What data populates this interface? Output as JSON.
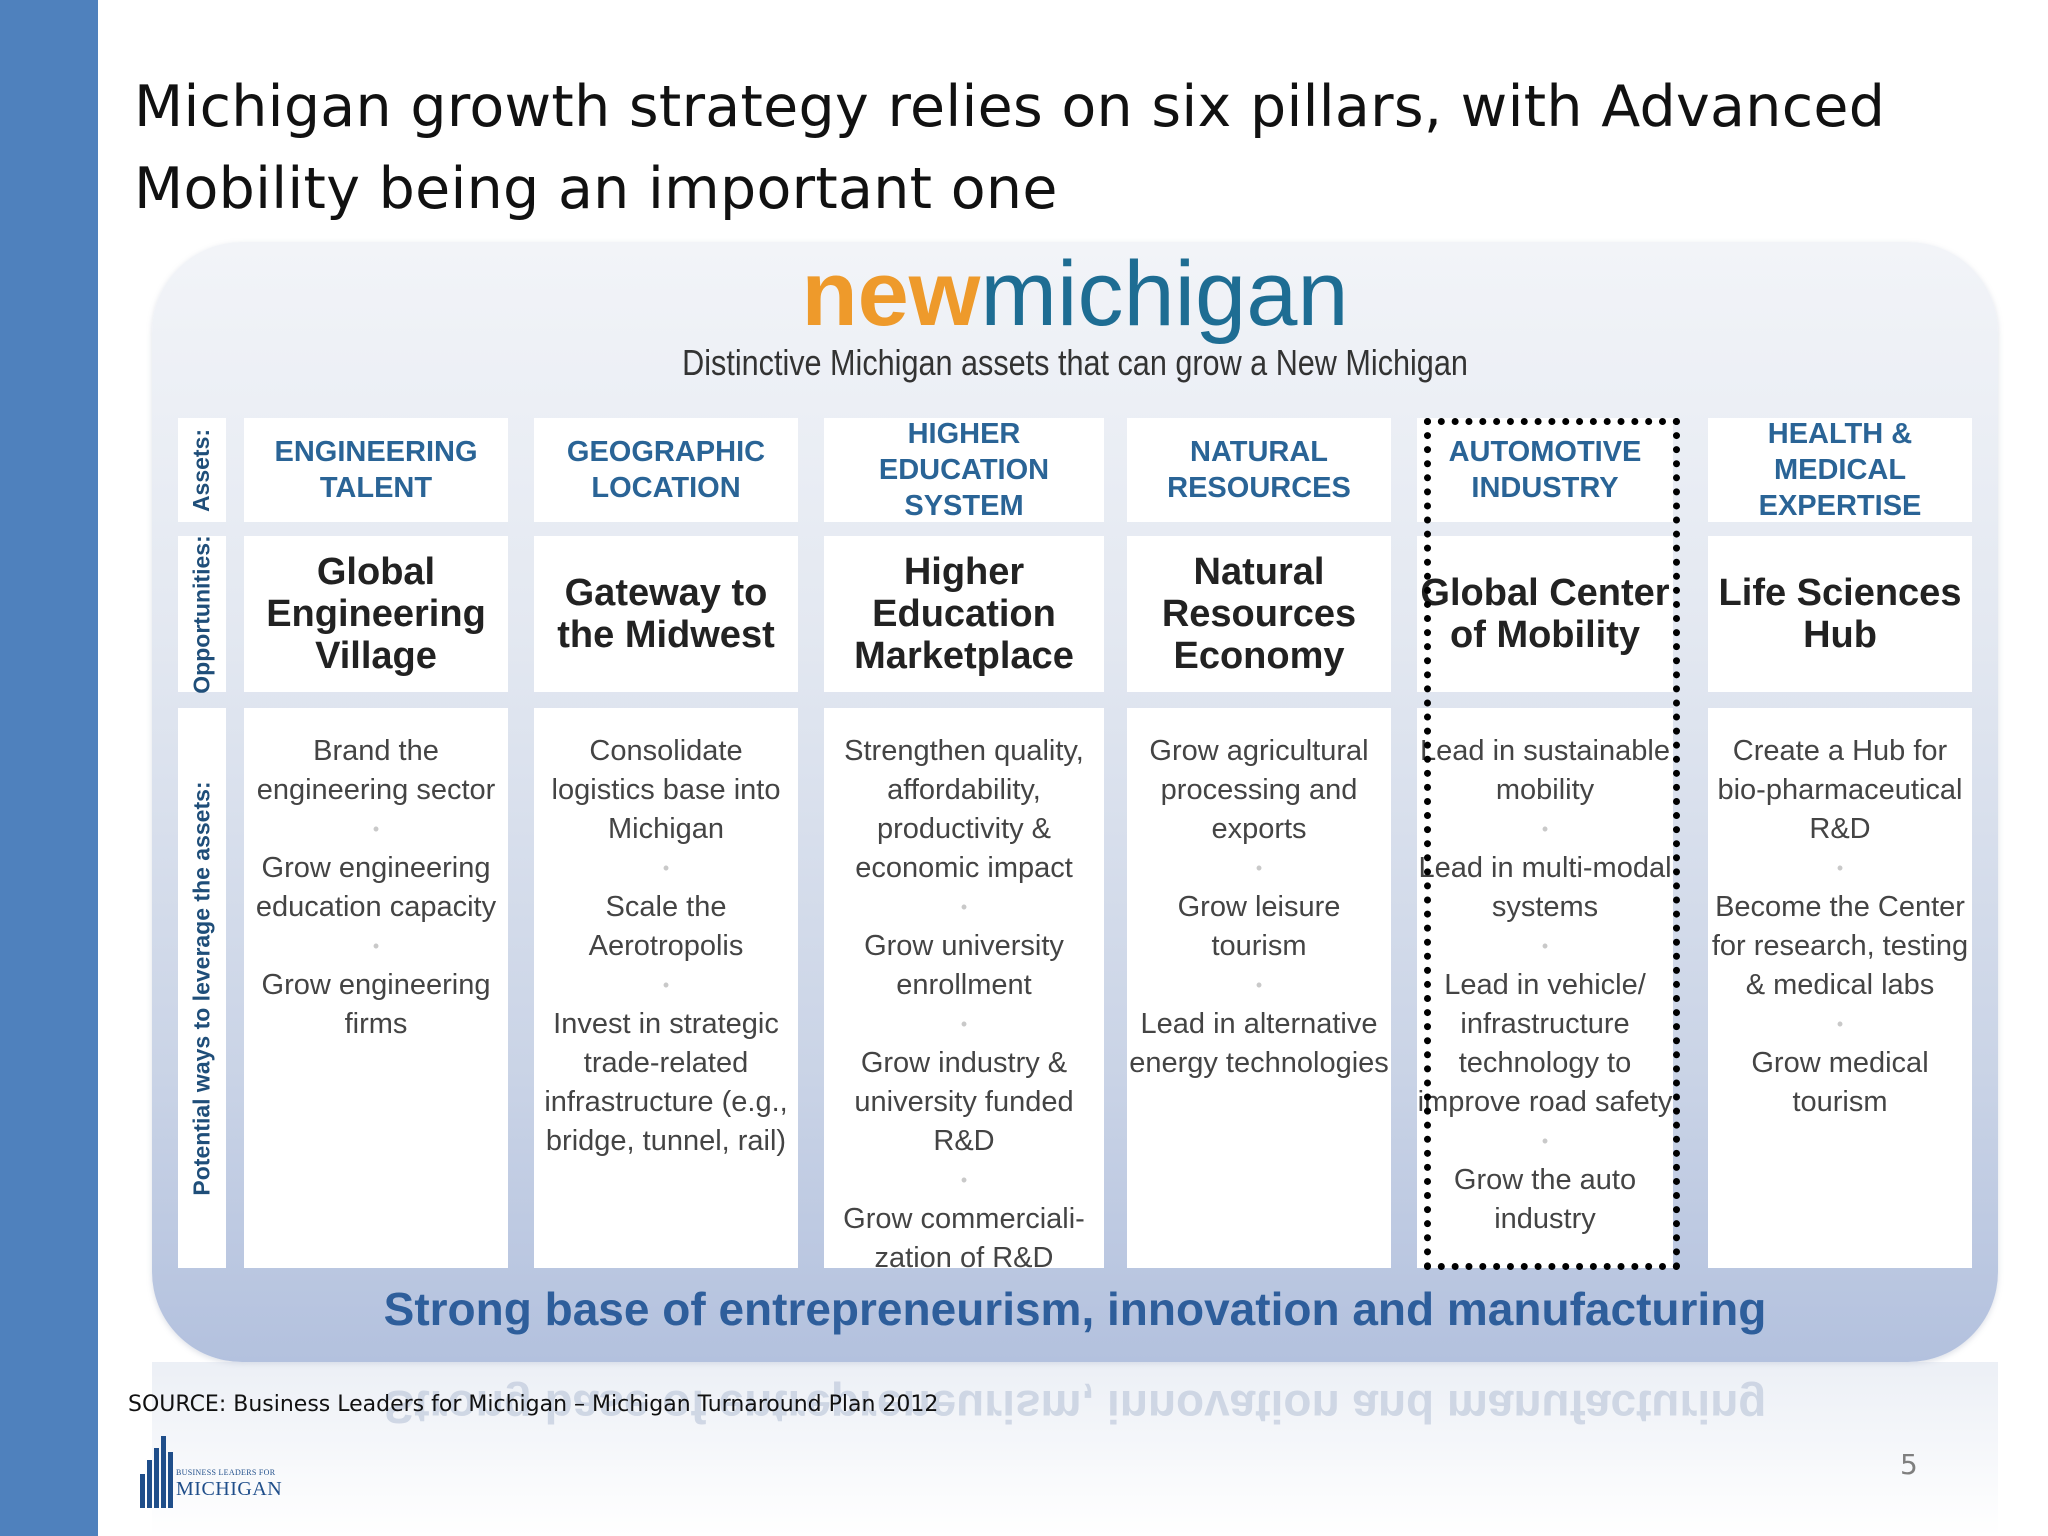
{
  "slide": {
    "title": "Michigan growth strategy relies on six pillars, with Advanced Mobility being an important one",
    "source": "SOURCE: Business Leaders for Michigan – Michigan Turnaround Plan 2012",
    "page_number": "5"
  },
  "logo": {
    "small_text": "BUSINESS LEADERS FOR",
    "big_text": "MICHIGAN"
  },
  "graphic": {
    "brand_new": "new",
    "brand_michigan": "michigan",
    "tagline": "Distinctive Michigan assets that can grow a New Michigan",
    "row_labels": {
      "assets": "Assets:",
      "opportunities": "Opportunities:",
      "ways": "Potential ways to leverage the assets:"
    },
    "pillars": [
      {
        "asset": "ENGINEERING TALENT",
        "opportunity": "Global Engineering Village",
        "ways": [
          "Brand the engineering sector",
          "Grow engineering education capacity",
          "Grow engineering firms"
        ]
      },
      {
        "asset": "GEOGRAPHIC LOCATION",
        "opportunity": "Gateway to the Midwest",
        "ways": [
          "Consolidate logistics base into Michigan",
          "Scale the Aerotropolis",
          "Invest in strategic trade-related infrastructure (e.g., bridge, tunnel, rail)"
        ]
      },
      {
        "asset": "HIGHER EDUCATION SYSTEM",
        "opportunity": "Higher Education Marketplace",
        "ways": [
          "Strengthen quality, affordability, productivity & economic impact",
          "Grow university enrollment",
          "Grow industry & university funded R&D",
          "Grow commerciali-zation of R&D"
        ]
      },
      {
        "asset": "NATURAL RESOURCES",
        "opportunity": "Natural Resources Economy",
        "ways": [
          "Grow agricultural processing and exports",
          "Grow leisure tourism",
          "Lead in alternative energy technologies"
        ]
      },
      {
        "asset": "AUTOMOTIVE INDUSTRY",
        "opportunity": "Global Center of Mobility",
        "ways": [
          "Lead in sustainable mobility",
          "Lead in multi-modal systems",
          "Lead in vehicle/ infrastructure technology to improve road safety",
          "Grow the auto industry"
        ]
      },
      {
        "asset": "HEALTH & MEDICAL EXPERTISE",
        "opportunity": "Life Sciences Hub",
        "ways": [
          "Create a Hub for bio-pharmaceutical R&D",
          "Become the Center for research, testing & medical labs",
          "Grow medical tourism"
        ]
      }
    ],
    "bottom_band": "Strong base of entrepreneurism, innovation and manufacturing",
    "bullet_glyph": "•",
    "highlighted_pillar": "AUTOMOTIVE INDUSTRY"
  }
}
